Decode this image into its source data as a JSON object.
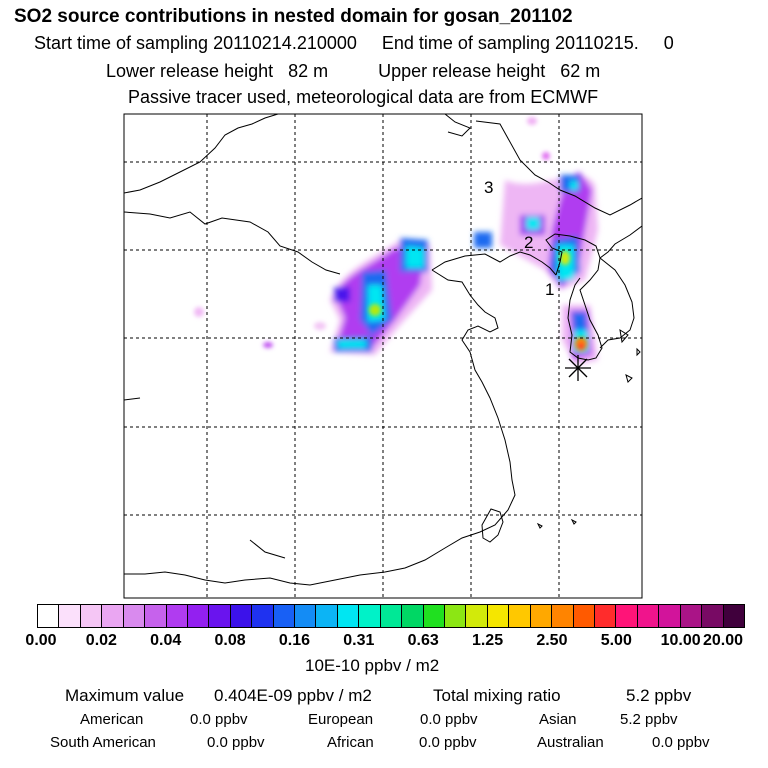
{
  "header": {
    "title": "SO2 source contributions in nested domain for gosan_201102",
    "line2": "Start time of sampling 20110214.210000     End time of sampling 20110215.     0",
    "line3": "Lower release height   82 m          Upper release height   62 m",
    "line4": "Passive tracer used, meteorological data are from ECMWF"
  },
  "map": {
    "labels": [
      "3",
      "2",
      "1"
    ],
    "receptor_marker": "asterisk-icon"
  },
  "colorbar": {
    "colors": [
      "#ffffff",
      "#fbe0fb",
      "#f5c6f5",
      "#eaa6f2",
      "#d98aee",
      "#c662ec",
      "#b03cf0",
      "#9320f0",
      "#6a14ee",
      "#3c12ea",
      "#1f32f0",
      "#1860f5",
      "#148cf5",
      "#0cb4f5",
      "#00e6f2",
      "#00f2c8",
      "#00e896",
      "#00d764",
      "#20e020",
      "#8ce614",
      "#d2ea0a",
      "#f5e600",
      "#ffc800",
      "#ffa800",
      "#ff8400",
      "#ff5a00",
      "#ff2c2c",
      "#ff1478",
      "#f0148c",
      "#d2149b",
      "#aa1487",
      "#780a64",
      "#40003c"
    ],
    "tick_labels": [
      "0.00",
      "0.02",
      "0.04",
      "0.08",
      "0.16",
      "0.31",
      "0.63",
      "1.25",
      "2.50",
      "5.00",
      "10.00",
      "20.00"
    ],
    "unit": "10E-10 ppbv / m2"
  },
  "summary": {
    "max_label": "Maximum value",
    "max_value": "0.404E-09 ppbv / m2",
    "total_label": "Total mixing ratio",
    "total_value": "5.2 ppbv",
    "regions": [
      {
        "name": "American",
        "value": "0.0 ppbv"
      },
      {
        "name": "European",
        "value": "0.0 ppbv"
      },
      {
        "name": "Asian",
        "value": "5.2 ppbv"
      },
      {
        "name": "South American",
        "value": "0.0 ppbv"
      },
      {
        "name": "African",
        "value": "0.0 ppbv"
      },
      {
        "name": "Australian",
        "value": "0.0 ppbv"
      }
    ]
  }
}
